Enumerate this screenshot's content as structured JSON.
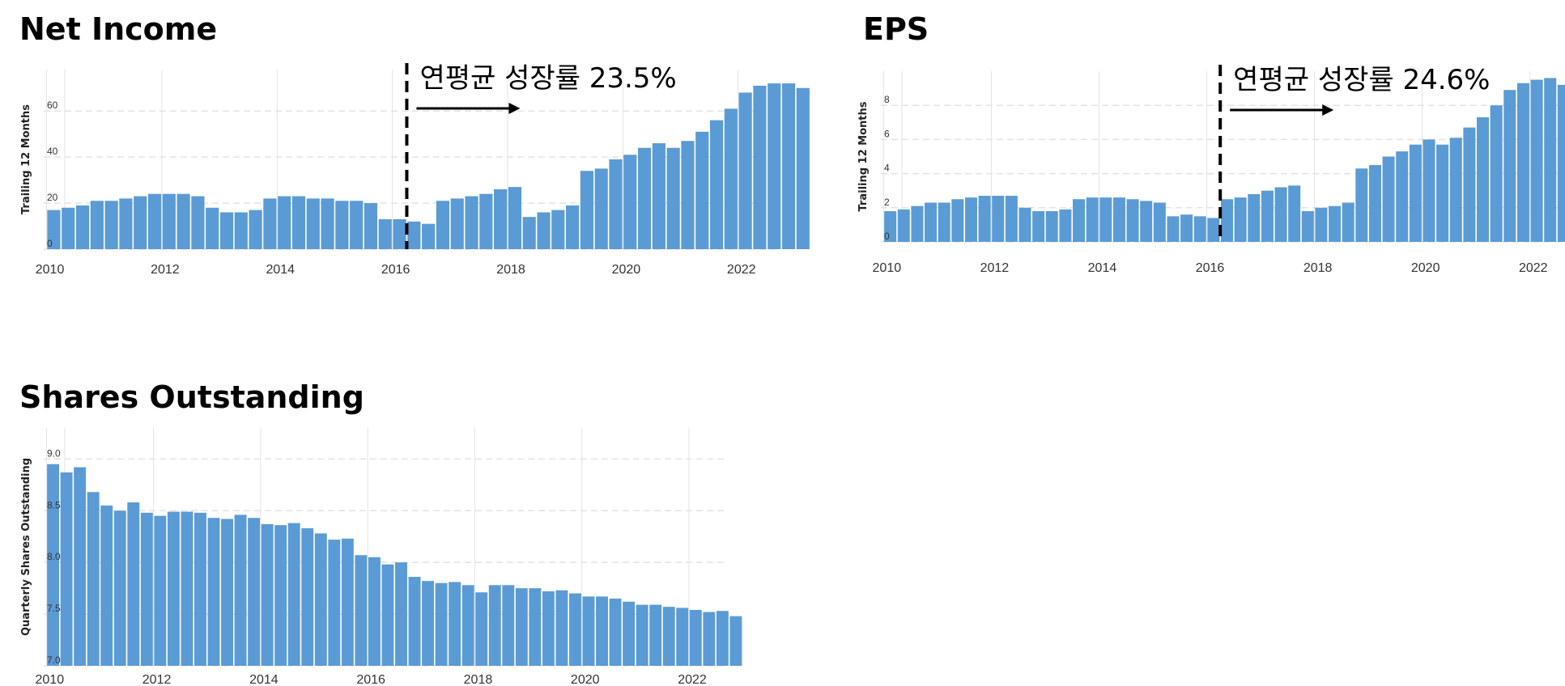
{
  "colors": {
    "bar": "#5b9bd5",
    "grid": "#e3e3e3",
    "annotation": "#000000"
  },
  "chart_data": [
    {
      "id": "net-income",
      "type": "bar",
      "title": "Net Income",
      "xlabel": "",
      "ylabel": "Trailing 12 Months",
      "xlim": [
        2009.95,
        2022.65
      ],
      "ylim": [
        0,
        78
      ],
      "yticks": [
        0,
        20,
        40,
        60
      ],
      "xticks": [
        2010,
        2012,
        2014,
        2016,
        2018,
        2020,
        2022
      ],
      "annotation": {
        "text": "연평균 성장률 23.5%",
        "x": 2016.25
      },
      "x_start": 2010,
      "x_step": 0.25,
      "values": [
        17,
        18,
        19,
        21,
        21,
        22,
        23,
        24,
        24,
        24,
        23,
        18,
        16,
        16,
        17,
        22,
        23,
        23,
        22,
        22,
        21,
        21,
        20,
        13,
        13,
        12,
        11,
        21,
        22,
        23,
        24,
        26,
        27,
        14,
        16,
        17,
        19,
        34,
        35,
        39,
        41,
        44,
        46,
        44,
        47,
        51,
        56,
        61,
        68,
        71,
        72,
        72,
        70
      ]
    },
    {
      "id": "eps",
      "type": "bar",
      "title": "EPS",
      "xlabel": "",
      "ylabel": "Trailing 12 Months",
      "xlim": [
        2009.95,
        2022.65
      ],
      "ylim": [
        0,
        10
      ],
      "yticks": [
        0,
        2,
        4,
        6,
        8
      ],
      "xticks": [
        2010,
        2012,
        2014,
        2016,
        2018,
        2020,
        2022
      ],
      "annotation": {
        "text": "연평균 성장률 24.6%",
        "x": 2016.25
      },
      "x_start": 2010,
      "x_step": 0.25,
      "values": [
        1.8,
        1.9,
        2.1,
        2.3,
        2.3,
        2.5,
        2.6,
        2.7,
        2.7,
        2.7,
        2.0,
        1.8,
        1.8,
        1.9,
        2.5,
        2.6,
        2.6,
        2.6,
        2.5,
        2.4,
        2.3,
        1.5,
        1.6,
        1.5,
        1.4,
        2.5,
        2.6,
        2.8,
        3.0,
        3.2,
        3.3,
        1.8,
        2.0,
        2.1,
        2.3,
        4.3,
        4.5,
        5.0,
        5.3,
        5.7,
        6.0,
        5.7,
        6.1,
        6.7,
        7.3,
        8.0,
        8.9,
        9.3,
        9.5,
        9.6,
        9.2
      ]
    },
    {
      "id": "shares-outstanding",
      "type": "bar",
      "title": "Shares Outstanding",
      "xlabel": "",
      "ylabel": "Quarterly Shares Outstanding",
      "xlim": [
        2009.95,
        2022.65
      ],
      "ylim": [
        7.0,
        9.3
      ],
      "yticks": [
        "7.0",
        "7.5",
        "8.0",
        "8.5",
        "9.0"
      ],
      "xticks": [
        2010,
        2012,
        2014,
        2016,
        2018,
        2020,
        2022
      ],
      "x_start": 2010,
      "x_step": 0.25,
      "values": [
        8.95,
        8.87,
        8.92,
        8.68,
        8.55,
        8.5,
        8.58,
        8.48,
        8.45,
        8.49,
        8.49,
        8.48,
        8.43,
        8.42,
        8.46,
        8.43,
        8.37,
        8.36,
        8.38,
        8.33,
        8.28,
        8.22,
        8.23,
        8.07,
        8.05,
        7.98,
        8.0,
        7.86,
        7.82,
        7.8,
        7.81,
        7.78,
        7.71,
        7.78,
        7.78,
        7.75,
        7.75,
        7.72,
        7.73,
        7.7,
        7.67,
        7.67,
        7.65,
        7.62,
        7.59,
        7.59,
        7.57,
        7.56,
        7.54,
        7.52,
        7.53,
        7.48
      ]
    }
  ]
}
